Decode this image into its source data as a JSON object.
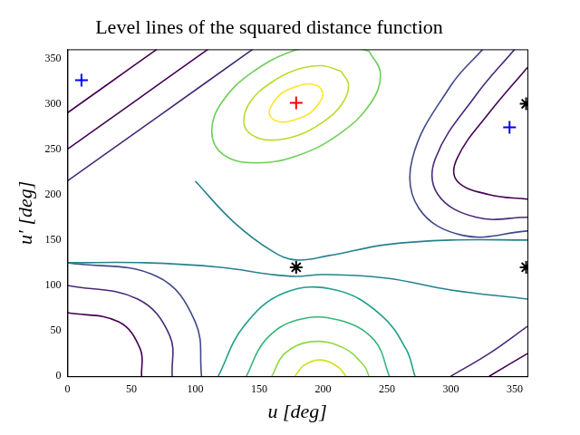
{
  "chart_data": {
    "type": "contour",
    "title": "Level lines of the squared distance function",
    "x_label": "u [deg]",
    "y_label": "u′ [deg]",
    "xlim": [
      0,
      360
    ],
    "ylim": [
      0,
      360
    ],
    "xticks": [
      0,
      50,
      100,
      150,
      200,
      250,
      300,
      350
    ],
    "yticks": [
      0,
      50,
      100,
      150,
      200,
      250,
      300,
      350
    ],
    "grid": false,
    "series": [
      {
        "type": "line",
        "color": "#fde725",
        "points": [
          [
            197,
            319
          ],
          [
            189,
            322
          ],
          [
            179,
            319
          ],
          [
            168,
            312
          ],
          [
            161,
            301
          ],
          [
            158,
            291
          ],
          [
            161,
            283
          ],
          [
            169,
            280
          ],
          [
            179,
            283
          ],
          [
            190,
            290
          ],
          [
            197,
            301
          ],
          [
            200,
            311
          ],
          [
            197,
            319
          ]
        ]
      },
      {
        "type": "line",
        "color": "#b5de2b",
        "points": [
          [
            214,
            336
          ],
          [
            199,
            342
          ],
          [
            178,
            337
          ],
          [
            158,
            322
          ],
          [
            143,
            302
          ],
          [
            138,
            280
          ],
          [
            144,
            266
          ],
          [
            159,
            260
          ],
          [
            180,
            265
          ],
          [
            200,
            280
          ],
          [
            215,
            300
          ],
          [
            220,
            321
          ],
          [
            214,
            336
          ]
        ]
      },
      {
        "type": "line",
        "color": "#6ece58",
        "points": [
          [
            236,
            358
          ],
          [
            211,
            367
          ],
          [
            178,
            359
          ],
          [
            145,
            335
          ],
          [
            121,
            302
          ],
          [
            113,
            269
          ],
          [
            122,
            244
          ],
          [
            147,
            235
          ],
          [
            180,
            243
          ],
          [
            213,
            267
          ],
          [
            237,
            300
          ],
          [
            245,
            333
          ],
          [
            236,
            358
          ]
        ]
      },
      {
        "type": "line",
        "color": "#d0e11c",
        "points": [
          [
            178,
            0
          ],
          [
            185,
            12
          ],
          [
            198,
            18
          ],
          [
            212,
            10
          ],
          [
            218,
            0
          ]
        ]
      },
      {
        "type": "line",
        "color": "#8fd744",
        "points": [
          [
            160,
            0
          ],
          [
            170,
            25
          ],
          [
            190,
            38
          ],
          [
            215,
            32
          ],
          [
            232,
            12
          ],
          [
            236,
            0
          ]
        ]
      },
      {
        "type": "line",
        "color": "#35b779",
        "points": [
          [
            140,
            0
          ],
          [
            155,
            40
          ],
          [
            180,
            62
          ],
          [
            212,
            62
          ],
          [
            240,
            40
          ],
          [
            252,
            0
          ]
        ]
      },
      {
        "type": "line",
        "color": "#1f9e89",
        "points": [
          [
            118,
            0
          ],
          [
            138,
            55
          ],
          [
            170,
            92
          ],
          [
            210,
            95
          ],
          [
            245,
            68
          ],
          [
            265,
            30
          ],
          [
            272,
            0
          ]
        ]
      },
      {
        "type": "line",
        "color": "#26828e",
        "points": [
          [
            100,
            215
          ],
          [
            130,
            170
          ],
          [
            160,
            138
          ],
          [
            179,
            128
          ],
          [
            205,
            133
          ],
          [
            250,
            145
          ],
          [
            300,
            150
          ],
          [
            360,
            150
          ]
        ]
      },
      {
        "type": "line",
        "color": "#26828e",
        "points": [
          [
            0,
            125
          ],
          [
            60,
            125
          ],
          [
            120,
            120
          ],
          [
            160,
            112
          ],
          [
            179,
            110
          ],
          [
            200,
            112
          ],
          [
            250,
            108
          ],
          [
            300,
            95
          ],
          [
            360,
            85
          ]
        ]
      },
      {
        "type": "line",
        "color": "#440154",
        "points": [
          [
            360,
            195
          ],
          [
            330,
            200
          ],
          [
            305,
            215
          ],
          [
            305,
            240
          ],
          [
            330,
            290
          ],
          [
            360,
            340
          ]
        ]
      },
      {
        "type": "line",
        "color": "#482878",
        "points": [
          [
            360,
            175
          ],
          [
            320,
            175
          ],
          [
            290,
            200
          ],
          [
            288,
            240
          ],
          [
            320,
            310
          ],
          [
            350,
            360
          ]
        ]
      },
      {
        "type": "line",
        "color": "#3e4989",
        "points": [
          [
            360,
            160
          ],
          [
            310,
            155
          ],
          [
            275,
            185
          ],
          [
            270,
            240
          ],
          [
            300,
            320
          ],
          [
            325,
            360
          ]
        ]
      },
      {
        "type": "line",
        "color": "#440154",
        "points": [
          [
            0,
            250
          ],
          [
            50,
            300
          ],
          [
            110,
            360
          ]
        ]
      },
      {
        "type": "line",
        "color": "#482878",
        "points": [
          [
            0,
            215
          ],
          [
            70,
            285
          ],
          [
            145,
            360
          ]
        ]
      },
      {
        "type": "line",
        "color": "#440154",
        "points": [
          [
            0,
            290
          ],
          [
            30,
            320
          ],
          [
            70,
            360
          ]
        ]
      },
      {
        "type": "line",
        "color": "#440154",
        "points": [
          [
            0,
            70
          ],
          [
            40,
            60
          ],
          [
            57,
            30
          ],
          [
            58,
            0
          ]
        ]
      },
      {
        "type": "line",
        "color": "#482878",
        "points": [
          [
            0,
            100
          ],
          [
            55,
            85
          ],
          [
            80,
            45
          ],
          [
            82,
            0
          ]
        ]
      },
      {
        "type": "line",
        "color": "#3e4989",
        "points": [
          [
            0,
            125
          ],
          [
            70,
            110
          ],
          [
            100,
            60
          ],
          [
            105,
            0
          ]
        ]
      },
      {
        "type": "line",
        "color": "#482878",
        "points": [
          [
            300,
            0
          ],
          [
            330,
            25
          ],
          [
            360,
            55
          ]
        ]
      },
      {
        "type": "line",
        "color": "#440154",
        "points": [
          [
            330,
            0
          ],
          [
            360,
            25
          ]
        ]
      },
      {
        "type": "scatter",
        "marker": "plus",
        "color": "#ff0000",
        "points": [
          [
            179,
            301
          ]
        ]
      },
      {
        "type": "scatter",
        "marker": "plus",
        "color": "#0000ff",
        "points": [
          [
            11,
            326
          ],
          [
            346,
            274
          ]
        ]
      },
      {
        "type": "scatter",
        "marker": "star",
        "color": "#000000",
        "points": [
          [
            179,
            120
          ],
          [
            359,
            120
          ],
          [
            359,
            300
          ]
        ]
      }
    ]
  }
}
